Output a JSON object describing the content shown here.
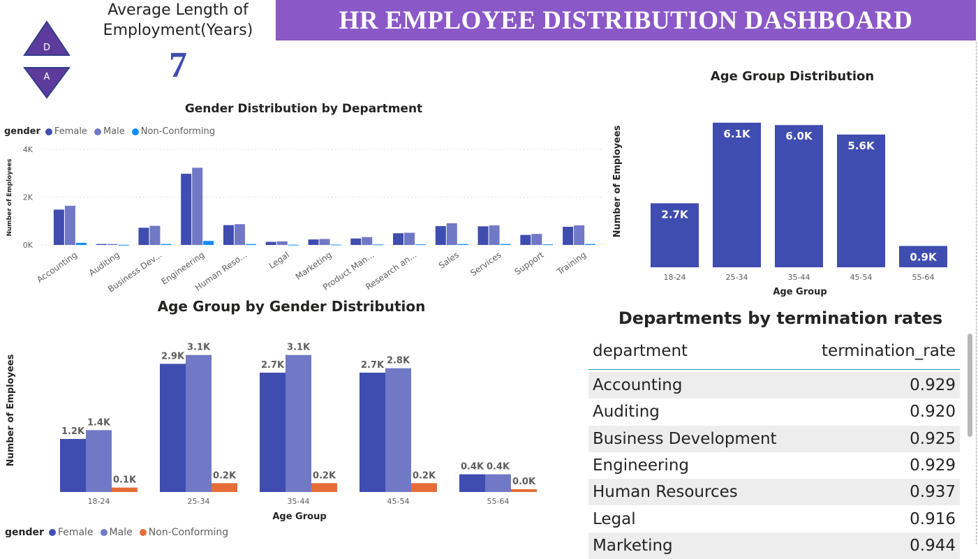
{
  "header": {
    "title": "HR EMPLOYEE DISTRIBUTION DASHBOARD",
    "logo_top": "D",
    "logo_bottom": "A"
  },
  "kpi": {
    "label": "Average Length of Employment(Years)",
    "label_line1": "Average Length of",
    "label_line2": "Employment(Years)",
    "value": "7"
  },
  "colors": {
    "banner": "#8a58c7",
    "female": "#3f4db0",
    "male": "#7178c6",
    "nonconforming_dept": "#118dff",
    "nonconforming_age": "#e66c37",
    "age_bar": "#3f4db0"
  },
  "legend_dept": {
    "title": "gender",
    "items": [
      "Female",
      "Male",
      "Non-Conforming"
    ]
  },
  "legend_age": {
    "title": "gender",
    "items": [
      "Female",
      "Male",
      "Non-Conforming"
    ]
  },
  "table": {
    "title": "Departments by termination rates",
    "columns": [
      "department",
      "termination_rate"
    ],
    "rows": [
      {
        "department": "Accounting",
        "rate": "0.929"
      },
      {
        "department": "Auditing",
        "rate": "0.920"
      },
      {
        "department": "Business Development",
        "rate": "0.925"
      },
      {
        "department": "Engineering",
        "rate": "0.929"
      },
      {
        "department": "Human Resources",
        "rate": "0.937"
      },
      {
        "department": "Legal",
        "rate": "0.916"
      },
      {
        "department": "Marketing",
        "rate": "0.944"
      }
    ]
  },
  "chart_data": [
    {
      "type": "bar",
      "title": "Gender Distribution by Department",
      "xlabel": "",
      "ylabel": "Number of Employees",
      "ylim": [
        0,
        4000
      ],
      "yticks": [
        "0K",
        "2K",
        "4K"
      ],
      "grid": true,
      "legend": "top-left",
      "categories": [
        "Accounting",
        "Auditing",
        "Business Dev...",
        "Engineering",
        "Human Reso...",
        "Legal",
        "Marketing",
        "Product Man...",
        "Research an...",
        "Sales",
        "Services",
        "Support",
        "Training"
      ],
      "series": [
        {
          "name": "Female",
          "values": [
            1480,
            40,
            720,
            2980,
            830,
            130,
            230,
            270,
            490,
            790,
            780,
            420,
            760
          ]
        },
        {
          "name": "Male",
          "values": [
            1640,
            40,
            800,
            3230,
            870,
            150,
            250,
            330,
            510,
            910,
            820,
            460,
            820
          ]
        },
        {
          "name": "Non-Conforming",
          "values": [
            90,
            5,
            40,
            170,
            40,
            10,
            15,
            20,
            25,
            40,
            40,
            25,
            40
          ]
        }
      ]
    },
    {
      "type": "bar",
      "title": "Age Group Distribution",
      "xlabel": "Age Group",
      "ylabel": "Number of Employees",
      "ylim": [
        0,
        6300
      ],
      "categories": [
        "18-24",
        "25-34",
        "35-44",
        "45-54",
        "55-64"
      ],
      "values": [
        2700,
        6100,
        6000,
        5600,
        900
      ],
      "data_labels": [
        "2.7K",
        "6.1K",
        "6.0K",
        "5.6K",
        "0.9K"
      ]
    },
    {
      "type": "bar",
      "title": "Age Group by Gender Distribution",
      "xlabel": "Age Group",
      "ylabel": "Number of Employees",
      "ylim": [
        0,
        3300
      ],
      "legend": "bottom-left",
      "categories": [
        "18-24",
        "25-34",
        "35-44",
        "45-54",
        "55-64"
      ],
      "series": [
        {
          "name": "Female",
          "values": [
            1200,
            2900,
            2700,
            2700,
            400
          ],
          "labels": [
            "1.2K",
            "2.9K",
            "2.7K",
            "2.7K",
            "0.4K"
          ]
        },
        {
          "name": "Male",
          "values": [
            1400,
            3100,
            3100,
            2800,
            400
          ],
          "labels": [
            "1.4K",
            "3.1K",
            "3.1K",
            "2.8K",
            "0.4K"
          ]
        },
        {
          "name": "Non-Conforming",
          "values": [
            100,
            200,
            200,
            200,
            40
          ],
          "labels": [
            "0.1K",
            "0.2K",
            "0.2K",
            "0.2K",
            "0.0K"
          ]
        }
      ]
    }
  ]
}
